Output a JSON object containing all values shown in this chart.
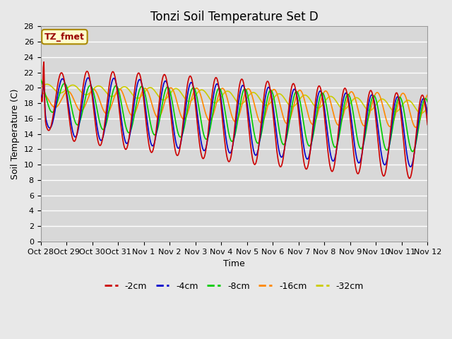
{
  "title": "Tonzi Soil Temperature Set D",
  "xlabel": "Time",
  "ylabel": "Soil Temperature (C)",
  "ylim": [
    0,
    28
  ],
  "yticks": [
    0,
    2,
    4,
    6,
    8,
    10,
    12,
    14,
    16,
    18,
    20,
    22,
    24,
    26,
    28
  ],
  "colors": {
    "-2cm": "#cc0000",
    "-4cm": "#0000cc",
    "-8cm": "#00cc00",
    "-16cm": "#ff8800",
    "-32cm": "#cccc00"
  },
  "legend_labels": [
    "-2cm",
    "-4cm",
    "-8cm",
    "-16cm",
    "-32cm"
  ],
  "annotation_text": "TZ_fmet",
  "annotation_box_color": "#ffffcc",
  "annotation_box_edge": "#aa8800",
  "plot_bg_color": "#d8d8d8",
  "fig_bg_color": "#e8e8e8",
  "grid_color": "#ffffff",
  "xtick_labels": [
    "Oct 28",
    "Oct 29",
    "Oct 30",
    "Oct 31",
    "Nov 1",
    "Nov 2",
    "Nov 3",
    "Nov 4",
    "Nov 5",
    "Nov 6",
    "Nov 7",
    "Nov 8",
    "Nov 9",
    "Nov 10",
    "Nov 11",
    "Nov 12"
  ],
  "title_fontsize": 12,
  "axis_label_fontsize": 9,
  "tick_fontsize": 8
}
